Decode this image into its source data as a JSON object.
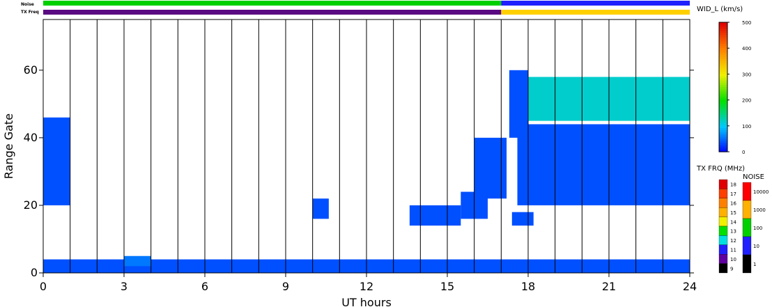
{
  "strips": {
    "noise_label": "Noise",
    "txfreq_label": "TX Freq"
  },
  "chart_data": {
    "type": "heatmap",
    "xlabel": "UT hours",
    "ylabel": "Range Gate",
    "xlim": [
      0,
      24
    ],
    "ylim": [
      0,
      75
    ],
    "x_ticks": [
      0,
      3,
      6,
      9,
      12,
      15,
      18,
      21,
      24
    ],
    "y_ticks": [
      0,
      20,
      40,
      60
    ],
    "parameter": {
      "title": "WID_L (km/s)",
      "range": [
        0,
        500
      ],
      "ticks": [
        0,
        100,
        200,
        300,
        400,
        500
      ]
    },
    "tx_freq": {
      "title": "TX FRQ (MHz)",
      "labels": [
        "18",
        "17",
        "16",
        "15",
        "14",
        "13",
        "12",
        "11",
        "10",
        "9"
      ],
      "colors": [
        "#e00000",
        "#ff4000",
        "#ff8000",
        "#ffb000",
        "#f0f000",
        "#00e000",
        "#00e0e0",
        "#2020ff",
        "#6000a0",
        "#000000"
      ]
    },
    "noise": {
      "title": "NOISE",
      "labels": [
        "10000",
        "1000",
        "100",
        "10",
        "1"
      ],
      "colors": [
        "#ff0000",
        "#ffb000",
        "#00d000",
        "#2020ff",
        "#000000"
      ]
    },
    "regions": [
      {
        "t": [
          0,
          1
        ],
        "g": [
          20,
          46
        ],
        "value": 40
      },
      {
        "t": [
          0,
          24
        ],
        "g": [
          0,
          4
        ],
        "value": 40
      },
      {
        "t": [
          3,
          4
        ],
        "g": [
          2,
          5
        ],
        "value": 60
      },
      {
        "t": [
          10,
          10.6
        ],
        "g": [
          16,
          22
        ],
        "value": 40
      },
      {
        "t": [
          13.6,
          15.5
        ],
        "g": [
          14,
          20
        ],
        "value": 40
      },
      {
        "t": [
          15.5,
          16.5
        ],
        "g": [
          16,
          24
        ],
        "value": 40
      },
      {
        "t": [
          16,
          17.2
        ],
        "g": [
          22,
          40
        ],
        "value": 40
      },
      {
        "t": [
          17.4,
          18.2
        ],
        "g": [
          14,
          18
        ],
        "value": 40
      },
      {
        "t": [
          17.6,
          24
        ],
        "g": [
          20,
          44
        ],
        "value": 40
      },
      {
        "t": [
          17.3,
          18
        ],
        "g": [
          40,
          60
        ],
        "value": 40
      },
      {
        "t": [
          18,
          24
        ],
        "g": [
          45,
          58
        ],
        "value": 120
      }
    ]
  },
  "colors": {
    "txfreq_before": "#5a0a82",
    "txfreq_after": "#ffd000",
    "noise_before": "#00d000",
    "noise_after": "#2020ff",
    "frame": "#000000"
  }
}
